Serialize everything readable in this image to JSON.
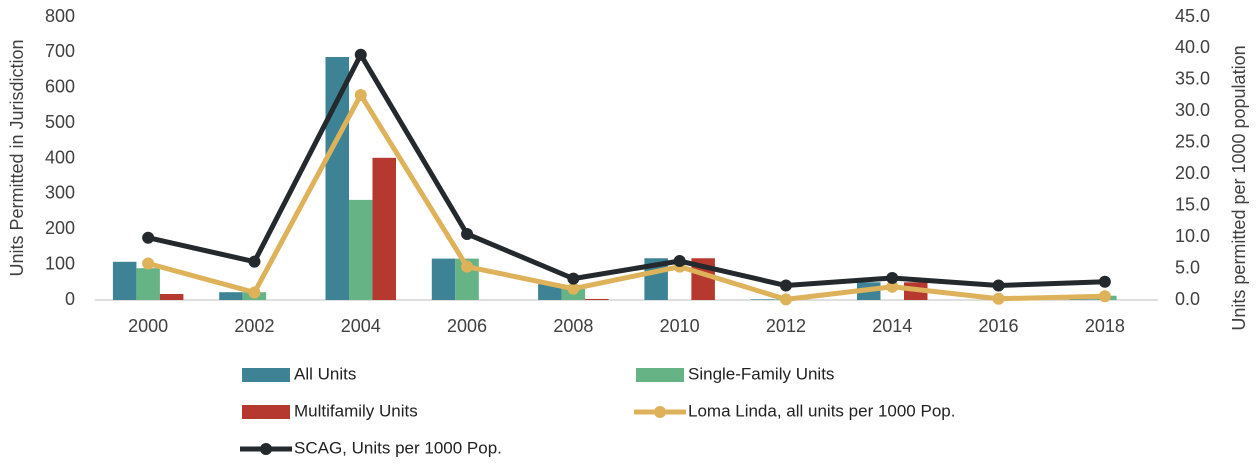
{
  "chart_data": {
    "type": "bar",
    "ylabel": "Units Permitted in Jurisdiction",
    "y2label": "Units permitted per 1000 population",
    "categories": [
      "2000",
      "2002",
      "2004",
      "2006",
      "2008",
      "2010",
      "2012",
      "2014",
      "2016",
      "2018"
    ],
    "series": [
      {
        "name": "All Units",
        "color": "#3e8395",
        "type": "bar",
        "values": [
          108,
          22,
          687,
          117,
          45,
          118,
          2,
          50,
          0,
          2
        ]
      },
      {
        "name": "Single-Family Units",
        "color": "#66b386",
        "type": "bar",
        "values": [
          90,
          22,
          283,
          117,
          42,
          0,
          2,
          0,
          0,
          12
        ]
      },
      {
        "name": "Multifamily Units",
        "color": "#b5392e",
        "type": "bar",
        "values": [
          17,
          0,
          402,
          0,
          3,
          118,
          0,
          50,
          0,
          0
        ]
      },
      {
        "name": "Loma Linda, all units per 1000 Pop.",
        "color": "#ddb25a",
        "type": "line",
        "axis": "y2",
        "values": [
          5.8,
          1.2,
          32.6,
          5.3,
          1.8,
          5.3,
          0.1,
          2.1,
          0.2,
          0.6
        ]
      },
      {
        "name": "SCAG, Units per 1000 Pop.",
        "color": "#23292d",
        "type": "line",
        "axis": "y2",
        "values": [
          9.9,
          6.1,
          39.0,
          10.5,
          3.4,
          6.2,
          2.3,
          3.5,
          2.3,
          2.9
        ]
      }
    ],
    "ylim": [
      0,
      800
    ],
    "yticks": [
      0,
      100,
      200,
      300,
      400,
      500,
      600,
      700,
      800
    ],
    "y2lim": [
      0,
      45
    ],
    "y2ticks": [
      {
        "value": 0,
        "label": "0.0"
      },
      {
        "value": 5,
        "label": "5.0"
      },
      {
        "value": 10,
        "label": "10.0"
      },
      {
        "value": 15,
        "label": "15.0"
      },
      {
        "value": 20,
        "label": "20.0"
      },
      {
        "value": 25,
        "label": "25.0"
      },
      {
        "value": 30,
        "label": "30.0"
      },
      {
        "value": 35,
        "label": "35.0"
      },
      {
        "value": 40,
        "label": "40.0"
      },
      {
        "value": 45,
        "label": "45.0"
      }
    ],
    "legend": "bottom"
  }
}
